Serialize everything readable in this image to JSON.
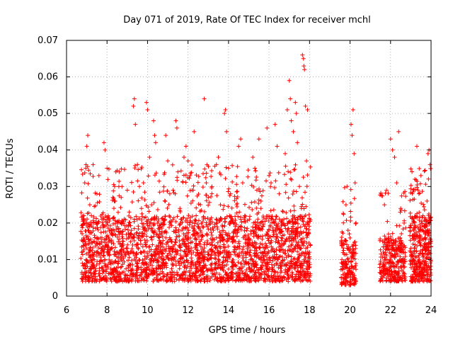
{
  "chart_data": {
    "type": "scatter",
    "title": "Day 071 of 2019, Rate Of TEC Index for receiver mchl",
    "xlabel": "GPS time / hours",
    "ylabel": "ROTI / TECUs",
    "xlim": [
      6,
      24
    ],
    "ylim": [
      0,
      0.07
    ],
    "x_ticks": [
      6,
      8,
      10,
      12,
      14,
      16,
      18,
      20,
      22,
      24
    ],
    "x_tick_labels": [
      "6",
      "8",
      "10",
      "12",
      "14",
      "16",
      "18",
      "20",
      "22",
      "24"
    ],
    "y_ticks": [
      0,
      0.01,
      0.02,
      0.03,
      0.04,
      0.05,
      0.06,
      0.07
    ],
    "y_tick_labels": [
      "0",
      "0.01",
      "0.02",
      "0.03",
      "0.04",
      "0.05",
      "0.06",
      "0.07"
    ],
    "grid": true,
    "marker": "+",
    "color": "#ff0000",
    "series": [
      {
        "name": "ROTI",
        "points": [
          [
            6.75,
            0.012
          ],
          [
            6.78,
            0.009
          ],
          [
            6.8,
            0.015
          ],
          [
            6.85,
            0.022
          ],
          [
            6.9,
            0.031
          ],
          [
            6.95,
            0.035
          ],
          [
            7.0,
            0.041
          ],
          [
            7.05,
            0.044
          ],
          [
            7.1,
            0.018
          ],
          [
            7.15,
            0.025
          ],
          [
            7.2,
            0.011
          ],
          [
            7.3,
            0.008
          ],
          [
            7.4,
            0.016
          ],
          [
            7.5,
            0.028
          ],
          [
            7.6,
            0.033
          ],
          [
            7.7,
            0.012
          ],
          [
            7.8,
            0.007
          ],
          [
            7.85,
            0.042
          ],
          [
            7.9,
            0.04
          ],
          [
            8.0,
            0.035
          ],
          [
            8.1,
            0.021
          ],
          [
            8.2,
            0.013
          ],
          [
            8.3,
            0.009
          ],
          [
            8.4,
            0.026
          ],
          [
            8.5,
            0.019
          ],
          [
            8.6,
            0.034
          ],
          [
            8.7,
            0.027
          ],
          [
            8.8,
            0.015
          ],
          [
            8.9,
            0.011
          ],
          [
            9.0,
            0.029
          ],
          [
            9.1,
            0.023
          ],
          [
            9.2,
            0.017
          ],
          [
            9.3,
            0.052
          ],
          [
            9.35,
            0.054
          ],
          [
            9.4,
            0.047
          ],
          [
            9.5,
            0.036
          ],
          [
            9.6,
            0.03
          ],
          [
            9.7,
            0.024
          ],
          [
            9.8,
            0.031
          ],
          [
            9.9,
            0.014
          ],
          [
            9.95,
            0.053
          ],
          [
            10.0,
            0.051
          ],
          [
            10.1,
            0.038
          ],
          [
            10.2,
            0.025
          ],
          [
            10.3,
            0.048
          ],
          [
            10.35,
            0.044
          ],
          [
            10.4,
            0.042
          ],
          [
            10.5,
            0.02
          ],
          [
            10.6,
            0.016
          ],
          [
            10.7,
            0.012
          ],
          [
            10.8,
            0.009
          ],
          [
            10.9,
            0.044
          ],
          [
            11.0,
            0.037
          ],
          [
            11.1,
            0.028
          ],
          [
            11.2,
            0.013
          ],
          [
            11.3,
            0.01
          ],
          [
            11.4,
            0.048
          ],
          [
            11.45,
            0.046
          ],
          [
            11.5,
            0.034
          ],
          [
            11.6,
            0.024
          ],
          [
            11.7,
            0.018
          ],
          [
            11.8,
            0.038
          ],
          [
            11.9,
            0.041
          ],
          [
            12.0,
            0.037
          ],
          [
            12.1,
            0.033
          ],
          [
            12.2,
            0.029
          ],
          [
            12.3,
            0.045
          ],
          [
            12.4,
            0.022
          ],
          [
            12.5,
            0.019
          ],
          [
            12.6,
            0.015
          ],
          [
            12.7,
            0.011
          ],
          [
            12.8,
            0.054
          ],
          [
            12.9,
            0.031
          ],
          [
            13.0,
            0.027
          ],
          [
            13.1,
            0.021
          ],
          [
            13.2,
            0.014
          ],
          [
            13.3,
            0.012
          ],
          [
            13.4,
            0.036
          ],
          [
            13.5,
            0.038
          ],
          [
            13.6,
            0.025
          ],
          [
            13.7,
            0.019
          ],
          [
            13.8,
            0.05
          ],
          [
            13.85,
            0.051
          ],
          [
            13.9,
            0.045
          ],
          [
            14.0,
            0.035
          ],
          [
            14.1,
            0.028
          ],
          [
            14.2,
            0.016
          ],
          [
            14.3,
            0.012
          ],
          [
            14.4,
            0.025
          ],
          [
            14.5,
            0.041
          ],
          [
            14.6,
            0.043
          ],
          [
            14.7,
            0.031
          ],
          [
            14.8,
            0.022
          ],
          [
            14.9,
            0.018
          ],
          [
            15.0,
            0.014
          ],
          [
            15.1,
            0.011
          ],
          [
            15.2,
            0.038
          ],
          [
            15.3,
            0.035
          ],
          [
            15.4,
            0.029
          ],
          [
            15.5,
            0.043
          ],
          [
            15.6,
            0.026
          ],
          [
            15.7,
            0.019
          ],
          [
            15.8,
            0.013
          ],
          [
            15.9,
            0.046
          ],
          [
            16.0,
            0.033
          ],
          [
            16.1,
            0.031
          ],
          [
            16.2,
            0.021
          ],
          [
            16.3,
            0.047
          ],
          [
            16.4,
            0.041
          ],
          [
            16.5,
            0.028
          ],
          [
            16.6,
            0.016
          ],
          [
            16.7,
            0.012
          ],
          [
            16.8,
            0.039
          ],
          [
            16.9,
            0.051
          ],
          [
            17.0,
            0.059
          ],
          [
            17.05,
            0.054
          ],
          [
            17.1,
            0.048
          ],
          [
            17.2,
            0.045
          ],
          [
            17.3,
            0.053
          ],
          [
            17.35,
            0.05
          ],
          [
            17.4,
            0.042
          ],
          [
            17.5,
            0.03
          ],
          [
            17.6,
            0.024
          ],
          [
            17.65,
            0.066
          ],
          [
            17.7,
            0.065
          ],
          [
            17.72,
            0.063
          ],
          [
            17.75,
            0.062
          ],
          [
            17.8,
            0.052
          ],
          [
            17.85,
            0.037
          ],
          [
            17.9,
            0.051
          ],
          [
            17.95,
            0.02
          ],
          [
            18.0,
            0.012
          ],
          [
            18.0,
            0.008
          ],
          [
            19.6,
            0.01
          ],
          [
            19.7,
            0.008
          ],
          [
            19.8,
            0.025
          ],
          [
            19.85,
            0.03
          ],
          [
            19.9,
            0.018
          ],
          [
            19.95,
            0.003
          ],
          [
            20.0,
            0.012
          ],
          [
            20.05,
            0.047
          ],
          [
            20.1,
            0.044
          ],
          [
            20.15,
            0.051
          ],
          [
            20.2,
            0.039
          ],
          [
            20.25,
            0.031
          ],
          [
            21.5,
            0.009
          ],
          [
            21.6,
            0.015
          ],
          [
            21.7,
            0.025
          ],
          [
            21.8,
            0.029
          ],
          [
            21.9,
            0.017
          ],
          [
            22.0,
            0.043
          ],
          [
            22.1,
            0.04
          ],
          [
            22.2,
            0.038
          ],
          [
            22.3,
            0.031
          ],
          [
            22.4,
            0.045
          ],
          [
            22.5,
            0.024
          ],
          [
            22.6,
            0.013
          ],
          [
            22.7,
            0.008
          ],
          [
            23.0,
            0.012
          ],
          [
            23.1,
            0.02
          ],
          [
            23.2,
            0.032
          ],
          [
            23.3,
            0.041
          ],
          [
            23.4,
            0.028
          ],
          [
            23.5,
            0.033
          ],
          [
            23.6,
            0.022
          ],
          [
            23.7,
            0.017
          ],
          [
            23.8,
            0.026
          ],
          [
            23.85,
            0.039
          ],
          [
            23.9,
            0.04
          ],
          [
            23.95,
            0.036
          ]
        ]
      }
    ],
    "dense_segments": [
      {
        "x0": 6.7,
        "x1": 18.05,
        "base_low": 0.004,
        "base_high": 0.022,
        "spread_high": 0.036,
        "count": 2600
      },
      {
        "x0": 19.55,
        "x1": 20.3,
        "base_low": 0.003,
        "base_high": 0.016,
        "spread_high": 0.03,
        "count": 170
      },
      {
        "x0": 21.45,
        "x1": 22.75,
        "base_low": 0.004,
        "base_high": 0.016,
        "spread_high": 0.029,
        "count": 300
      },
      {
        "x0": 22.95,
        "x1": 24.0,
        "base_low": 0.004,
        "base_high": 0.022,
        "spread_high": 0.035,
        "count": 380
      }
    ]
  }
}
